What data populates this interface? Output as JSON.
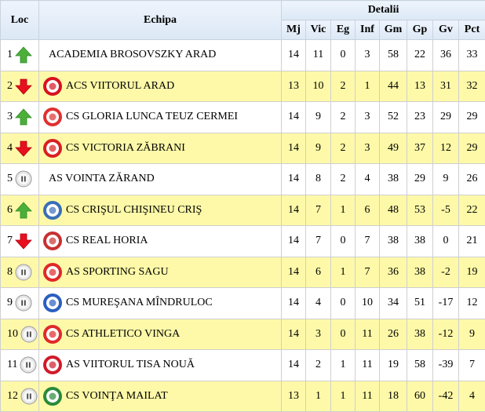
{
  "header": {
    "loc": "Loc",
    "team": "Echipa",
    "details": "Detalii",
    "columns": [
      "Mj",
      "Vic",
      "Eg",
      "Inf",
      "Gm",
      "Gp",
      "Gv",
      "Pct"
    ]
  },
  "colors": {
    "highlight": "#fdf9a8",
    "up": "#4caf3a",
    "down": "#e8101e",
    "same": "#cfcfcf"
  },
  "rows": [
    {
      "pos": "1",
      "trend": "up",
      "team": "ACADEMIA BROSOVSZKY ARAD",
      "logo": null,
      "highlight": false,
      "stats": [
        "14",
        "11",
        "0",
        "3",
        "58",
        "22",
        "36",
        "33"
      ]
    },
    {
      "pos": "2",
      "trend": "down",
      "team": "ACS VIITORUL ARAD",
      "logo": "#d8121f",
      "highlight": true,
      "stats": [
        "13",
        "10",
        "2",
        "1",
        "44",
        "13",
        "31",
        "32"
      ]
    },
    {
      "pos": "3",
      "trend": "up",
      "team": "CS GLORIA LUNCA TEUZ CERMEI",
      "logo": "#e03030",
      "highlight": false,
      "stats": [
        "14",
        "9",
        "2",
        "3",
        "52",
        "23",
        "29",
        "29"
      ]
    },
    {
      "pos": "4",
      "trend": "down",
      "team": "CS VICTORIA ZĂBRANI",
      "logo": "#d82020",
      "highlight": true,
      "stats": [
        "14",
        "9",
        "2",
        "3",
        "49",
        "37",
        "12",
        "29"
      ]
    },
    {
      "pos": "5",
      "trend": "same",
      "team": "AS VOINTA ZĂRAND",
      "logo": null,
      "highlight": false,
      "stats": [
        "14",
        "8",
        "2",
        "4",
        "38",
        "29",
        "9",
        "26"
      ]
    },
    {
      "pos": "6",
      "trend": "up",
      "team": "CS CRIŞUL CHIŞINEU CRIŞ",
      "logo": "#3a6fb8",
      "highlight": true,
      "stats": [
        "14",
        "7",
        "1",
        "6",
        "48",
        "53",
        "-5",
        "22"
      ]
    },
    {
      "pos": "7",
      "trend": "down",
      "team": "CS REAL HORIA",
      "logo": "#c83030",
      "highlight": false,
      "stats": [
        "14",
        "7",
        "0",
        "7",
        "38",
        "38",
        "0",
        "21"
      ]
    },
    {
      "pos": "8",
      "trend": "same",
      "team": "AS SPORTING SAGU",
      "logo": "#e02828",
      "highlight": true,
      "stats": [
        "14",
        "6",
        "1",
        "7",
        "36",
        "38",
        "-2",
        "19"
      ]
    },
    {
      "pos": "9",
      "trend": "same",
      "team": "CS MUREŞANA MÎNDRULOC",
      "logo": "#2a5fc0",
      "highlight": false,
      "stats": [
        "14",
        "4",
        "0",
        "10",
        "34",
        "51",
        "-17",
        "12"
      ]
    },
    {
      "pos": "10",
      "trend": "same",
      "team": "CS ATHLETICO VINGA",
      "logo": "#e02a2a",
      "highlight": true,
      "stats": [
        "14",
        "3",
        "0",
        "11",
        "26",
        "38",
        "-12",
        "9"
      ]
    },
    {
      "pos": "11",
      "trend": "same",
      "team": "AS VIITORUL TISA NOUĂ",
      "logo": "#d01a2a",
      "highlight": false,
      "stats": [
        "14",
        "2",
        "1",
        "11",
        "19",
        "58",
        "-39",
        "7"
      ]
    },
    {
      "pos": "12",
      "trend": "same",
      "team": "CS VOINŢA MAILAT",
      "logo": "#2a8a3a",
      "highlight": true,
      "stats": [
        "13",
        "1",
        "1",
        "11",
        "18",
        "60",
        "-42",
        "4"
      ]
    }
  ]
}
